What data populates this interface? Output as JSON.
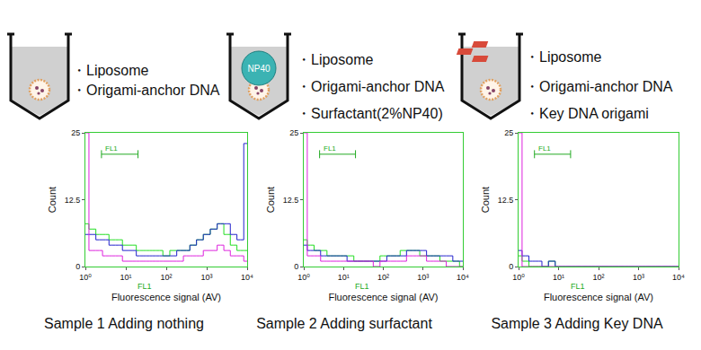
{
  "panels": [
    {
      "caption": "Sample 1 Adding nothing",
      "contents": [
        "・Liposome",
        "・Origami-anchor DNA"
      ]
    },
    {
      "caption": "Sample 2 Adding surfactant",
      "tube_label": "NP40",
      "contents": [
        "・Liposome",
        "・Origami-anchor DNA",
        "・Surfactant(2%NP40)"
      ]
    },
    {
      "caption": "Sample 3 Adding Key DNA",
      "contents": [
        "・Liposome",
        "・Origami-anchor DNA",
        "・Key DNA origami"
      ]
    }
  ],
  "chart_data": [
    {
      "type": "line",
      "log": "x",
      "line_style": "step",
      "x_label": "Fluorescence signal (AV)",
      "y_label": "Count",
      "xlim": [
        1,
        10000
      ],
      "ylim": [
        0,
        25
      ],
      "xticks": [
        {
          "value": 1,
          "label": "10⁰"
        },
        {
          "value": 10,
          "label": "10¹"
        },
        {
          "value": 100,
          "label": "10²"
        },
        {
          "value": 1000,
          "label": "10³"
        },
        {
          "value": 10000,
          "label": "10⁴"
        }
      ],
      "yticks": [
        0,
        12.5,
        25
      ],
      "gate": {
        "label": "FL1",
        "x": [
          2.5,
          20
        ],
        "y": 21
      },
      "x_marker": {
        "text": "FL1",
        "x": 30
      },
      "x": [
        1,
        1.5,
        2.2,
        3.2,
        4.6,
        6.8,
        10,
        15,
        22,
        32,
        46,
        68,
        100,
        150,
        220,
        320,
        460,
        680,
        1000,
        1500,
        2200,
        3200,
        4600,
        6800,
        10000
      ],
      "series": [
        {
          "color": "#22dd22",
          "values": [
            8,
            7,
            6,
            6,
            5,
            5,
            4,
            4,
            3,
            3,
            3,
            3,
            2,
            3,
            3,
            3,
            4,
            5,
            6,
            7,
            8,
            6,
            4,
            3,
            3
          ]
        },
        {
          "color": "#2222cc",
          "values": [
            6,
            6,
            5,
            5,
            4,
            4,
            3,
            3,
            2,
            2,
            2,
            2,
            2,
            2,
            3,
            3,
            4,
            5,
            6,
            7,
            8,
            8,
            6,
            5,
            23
          ]
        },
        {
          "color": "#dd22dd",
          "values": [
            25,
            3,
            3,
            2,
            2,
            2,
            1,
            1,
            1,
            1,
            1,
            1,
            1,
            1,
            1,
            2,
            2,
            2,
            3,
            3,
            4,
            3,
            2,
            2,
            1
          ]
        }
      ]
    },
    {
      "type": "line",
      "log": "x",
      "line_style": "step",
      "x_label": "Fluorescence signal (AV)",
      "y_label": "Count",
      "xlim": [
        1,
        10000
      ],
      "ylim": [
        0,
        25
      ],
      "xticks": [
        {
          "value": 1,
          "label": "10⁰"
        },
        {
          "value": 10,
          "label": "10¹"
        },
        {
          "value": 100,
          "label": "10²"
        },
        {
          "value": 1000,
          "label": "10³"
        },
        {
          "value": 10000,
          "label": "10⁴"
        }
      ],
      "yticks": [
        0,
        12.5,
        25
      ],
      "gate": {
        "label": "FL1",
        "x": [
          2.5,
          20
        ],
        "y": 21
      },
      "x_marker": {
        "text": "FL1",
        "x": 30
      },
      "x": [
        1,
        1.5,
        2.2,
        3.2,
        4.6,
        6.8,
        10,
        15,
        22,
        32,
        46,
        68,
        100,
        150,
        220,
        320,
        460,
        680,
        1000,
        1500,
        2200,
        3200,
        4600,
        6800,
        10000
      ],
      "series": [
        {
          "color": "#22dd22",
          "values": [
            5,
            4,
            3,
            3,
            2,
            2,
            2,
            2,
            1,
            1,
            1,
            1,
            2,
            2,
            2,
            3,
            3,
            3,
            2,
            2,
            2,
            1,
            1,
            1,
            0
          ]
        },
        {
          "color": "#2222cc",
          "values": [
            4,
            3,
            3,
            2,
            2,
            2,
            2,
            1,
            1,
            1,
            1,
            1,
            1,
            2,
            2,
            2,
            3,
            3,
            3,
            2,
            2,
            2,
            2,
            1,
            1
          ]
        },
        {
          "color": "#dd22dd",
          "values": [
            25,
            2,
            2,
            1,
            1,
            1,
            1,
            1,
            1,
            1,
            1,
            0,
            1,
            1,
            1,
            1,
            2,
            2,
            2,
            1,
            1,
            1,
            0,
            0,
            0
          ]
        }
      ]
    },
    {
      "type": "line",
      "log": "x",
      "line_style": "step",
      "x_label": "Fluorescence signal (AV)",
      "y_label": "Count",
      "xlim": [
        1,
        10000
      ],
      "ylim": [
        0,
        25
      ],
      "xticks": [
        {
          "value": 1,
          "label": "10⁰"
        },
        {
          "value": 10,
          "label": "10¹"
        },
        {
          "value": 100,
          "label": "10²"
        },
        {
          "value": 1000,
          "label": "10³"
        },
        {
          "value": 10000,
          "label": "10⁴"
        }
      ],
      "yticks": [
        0,
        12.5,
        25
      ],
      "gate": {
        "label": "FL1",
        "x": [
          2.5,
          20
        ],
        "y": 21
      },
      "x_marker": {
        "text": "FL1",
        "x": 30
      },
      "x": [
        1,
        1.5,
        2.2,
        3.2,
        4.6,
        6.8,
        10,
        15,
        22,
        32,
        46,
        68,
        100,
        150,
        220,
        320,
        460,
        680,
        1000,
        1500,
        2200,
        3200,
        4600,
        6800,
        10000
      ],
      "series": [
        {
          "color": "#22dd22",
          "values": [
            2,
            1,
            0,
            0,
            0,
            1,
            0,
            0,
            0,
            0,
            0,
            0,
            0,
            0,
            0,
            0,
            0,
            0,
            0,
            0,
            0,
            0,
            0,
            0,
            0
          ]
        },
        {
          "color": "#2222cc",
          "values": [
            3,
            2,
            1,
            1,
            0,
            1,
            0,
            0,
            0,
            0,
            0,
            0,
            0,
            0,
            0,
            0,
            0,
            0,
            0,
            0,
            0,
            0,
            0,
            0,
            0
          ]
        },
        {
          "color": "#dd22dd",
          "values": [
            25,
            0,
            0,
            0,
            0,
            0,
            0,
            0,
            0,
            0,
            0,
            0,
            0,
            0,
            0,
            0,
            0,
            0,
            0,
            0,
            0,
            0,
            0,
            0,
            0
          ]
        }
      ]
    }
  ]
}
